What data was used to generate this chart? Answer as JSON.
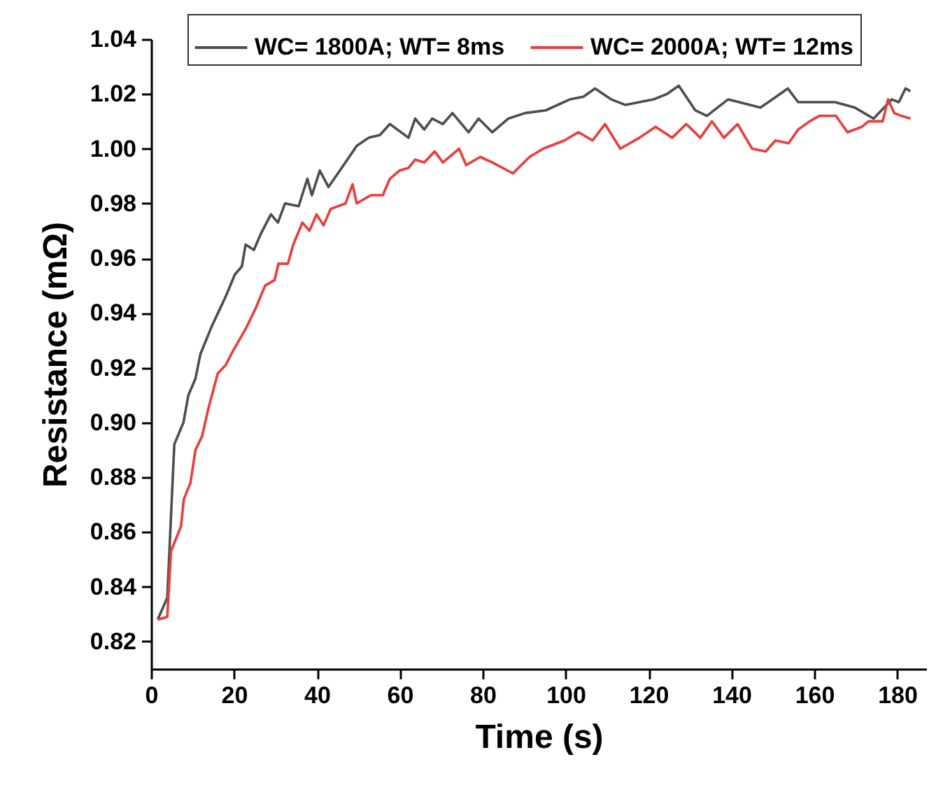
{
  "chart_data": {
    "type": "line",
    "xlabel": "Time (s)",
    "ylabel": "Resistance (mΩ)",
    "xlim": [
      0,
      187
    ],
    "ylim": [
      0.81,
      1.04
    ],
    "xticks": [
      0,
      20,
      40,
      60,
      80,
      100,
      120,
      140,
      160,
      180
    ],
    "yticks": [
      0.82,
      0.84,
      0.86,
      0.88,
      {
        "value": 0.9,
        "label": "0.90"
      },
      0.92,
      0.94,
      0.96,
      0.98,
      {
        "value": 1.0,
        "label": "1.00"
      },
      1.02,
      1.04
    ],
    "legend": "top",
    "grid": false,
    "line_style": "solid",
    "series": [
      {
        "name": "WC= 1800A; WT= 8ms",
        "color": "#4d4d4d",
        "x": [
          1.6,
          3.9,
          5.6,
          7.8,
          9,
          10.7,
          11.9,
          14.6,
          18,
          20.2,
          21.9,
          22.8,
          24.8,
          26.5,
          28.9,
          30.6,
          32.3,
          35.6,
          37.7,
          38.8,
          40.7,
          42.8,
          46.9,
          49.6,
          52.5,
          55.2,
          57.6,
          62.1,
          63.7,
          65.9,
          67.8,
          70.4,
          72.7,
          76.6,
          79,
          82.3,
          86.2,
          90.2,
          95.2,
          101,
          104.3,
          107.1,
          111,
          114.4,
          121.2,
          124.5,
          127.3,
          131.3,
          134.1,
          139.2,
          147,
          149.9,
          153.6,
          156.1,
          165,
          169.8,
          174.3,
          178.7,
          180.4,
          182,
          183.2
        ],
        "values": [
          0.828,
          0.836,
          0.892,
          0.9,
          0.91,
          0.916,
          0.925,
          0.935,
          0.946,
          0.954,
          0.957,
          0.965,
          0.963,
          0.969,
          0.976,
          0.973,
          0.98,
          0.979,
          0.989,
          0.983,
          0.992,
          0.986,
          0.995,
          1.001,
          1.004,
          1.005,
          1.009,
          1.004,
          1.011,
          1.007,
          1.011,
          1.009,
          1.013,
          1.006,
          1.011,
          1.006,
          1.011,
          1.013,
          1.014,
          1.018,
          1.019,
          1.022,
          1.018,
          1.016,
          1.018,
          1.02,
          1.023,
          1.014,
          1.012,
          1.018,
          1.015,
          1.018,
          1.022,
          1.017,
          1.017,
          1.015,
          1.011,
          1.018,
          1.017,
          1.022,
          1.021
        ]
      },
      {
        "name": "WC= 2000A; WT= 12ms",
        "color": "#ee3b3b",
        "x": [
          1.6,
          3.9,
          4.8,
          7.2,
          7.9,
          9.5,
          10.7,
          12.3,
          13.8,
          16.1,
          18,
          19.7,
          23.1,
          25.3,
          27.5,
          29.8,
          30.7,
          33,
          34.3,
          36.5,
          38.2,
          39.9,
          41.6,
          43.3,
          46.9,
          48.6,
          49.6,
          53,
          55.9,
          57.6,
          59.9,
          62.1,
          63.7,
          65.9,
          68.4,
          70.4,
          74.3,
          76,
          79.4,
          82.3,
          87.3,
          91.3,
          94.6,
          99.7,
          103.1,
          106.5,
          109.5,
          113.2,
          117.8,
          121.7,
          125.7,
          129.1,
          132.5,
          135.3,
          138.2,
          141.5,
          145,
          148.3,
          150.6,
          153.8,
          156.1,
          158.9,
          161.2,
          165.2,
          168,
          171.5,
          173.1,
          176.5,
          177.8,
          179.3,
          181,
          183.2
        ],
        "values": [
          0.828,
          0.829,
          0.853,
          0.862,
          0.872,
          0.878,
          0.89,
          0.895,
          0.905,
          0.918,
          0.921,
          0.926,
          0.935,
          0.942,
          0.95,
          0.952,
          0.958,
          0.958,
          0.965,
          0.973,
          0.97,
          0.976,
          0.972,
          0.978,
          0.98,
          0.987,
          0.98,
          0.983,
          0.983,
          0.989,
          0.992,
          0.993,
          0.996,
          0.995,
          0.999,
          0.995,
          1.0,
          0.994,
          0.997,
          0.995,
          0.991,
          0.997,
          1.0,
          1.003,
          1.006,
          1.003,
          1.009,
          1.0,
          1.004,
          1.008,
          1.004,
          1.009,
          1.004,
          1.01,
          1.004,
          1.009,
          1.0,
          0.999,
          1.003,
          1.002,
          1.007,
          1.01,
          1.012,
          1.012,
          1.006,
          1.008,
          1.01,
          1.01,
          1.018,
          1.013,
          1.012,
          1.011
        ]
      }
    ]
  }
}
